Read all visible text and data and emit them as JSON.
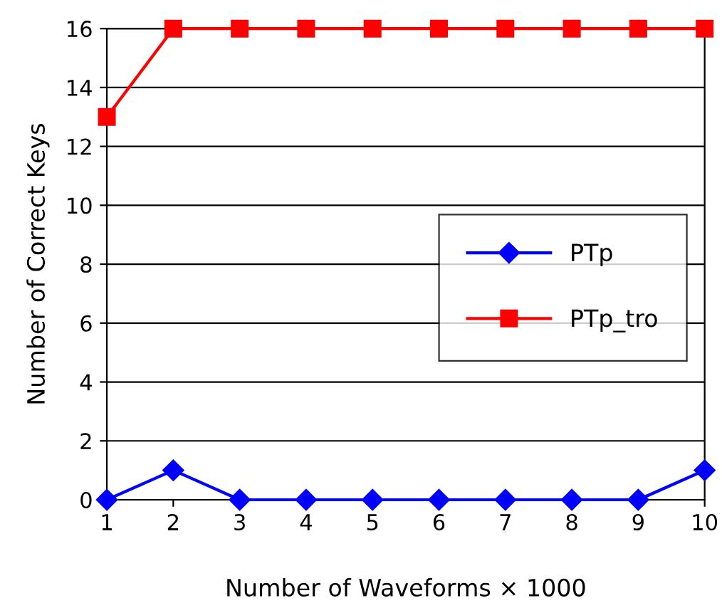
{
  "chart_data": {
    "type": "line",
    "xlabel": "Number of Waveforms × 1000",
    "ylabel": "Number of Correct Keys",
    "categories": [
      "1",
      "2",
      "3",
      "4",
      "5",
      "6",
      "7",
      "8",
      "9",
      "10"
    ],
    "series": [
      {
        "name": "PTp",
        "color": "#0000ff",
        "marker": "diamond",
        "values": [
          0,
          1,
          0,
          0,
          0,
          0,
          0,
          0,
          0,
          1
        ]
      },
      {
        "name": "PTp_tro",
        "color": "#ff0000",
        "marker": "square",
        "values": [
          13,
          16,
          16,
          16,
          16,
          16,
          16,
          16,
          16,
          16
        ]
      }
    ],
    "ylim": [
      0,
      16
    ],
    "yticks": [
      0,
      2,
      4,
      6,
      8,
      10,
      12,
      14,
      16
    ],
    "grid": "y",
    "legend": "right",
    "line_style": "solid"
  }
}
